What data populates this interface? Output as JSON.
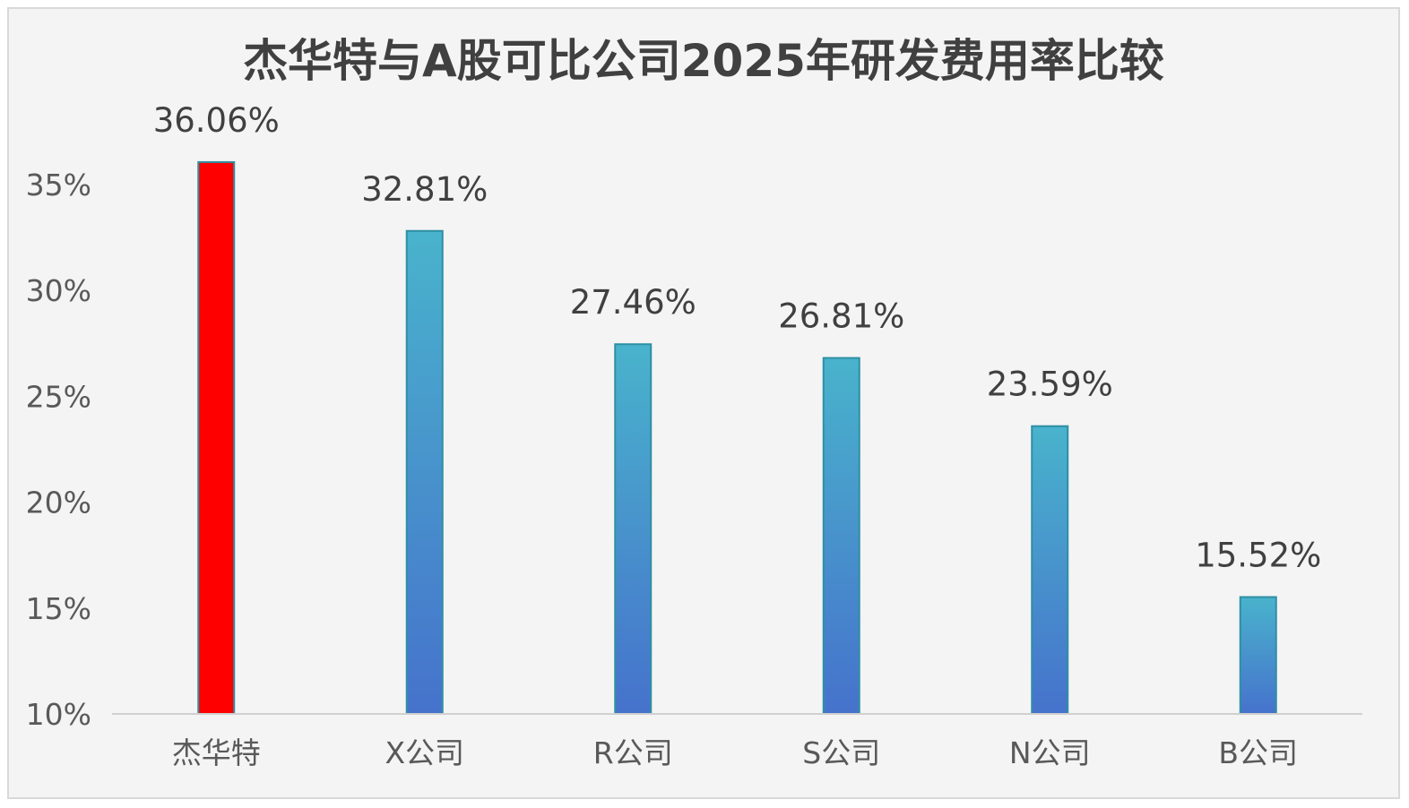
{
  "colors": {
    "highlight": "#ff0000",
    "bar_top": "#49b3cc",
    "bar_bottom": "#4672cc",
    "bar_stroke": "#2f8fa3",
    "axis": "#d0d0d0"
  },
  "chart_data": {
    "type": "bar",
    "title": "杰华特与A股可比公司2025年研发费用率比较",
    "xlabel": "",
    "ylabel": "",
    "categories": [
      "杰华特",
      "X公司",
      "R公司",
      "S公司",
      "N公司",
      "B公司"
    ],
    "values": [
      36.06,
      32.81,
      27.46,
      26.81,
      23.59,
      15.52
    ],
    "data_labels": [
      "36.06%",
      "32.81%",
      "27.46%",
      "26.81%",
      "23.59%",
      "15.52%"
    ],
    "highlight_index": 0,
    "ylim": [
      10,
      35
    ],
    "yticks": [
      10,
      15,
      20,
      25,
      30,
      35
    ],
    "ytick_labels": [
      "10%",
      "15%",
      "20%",
      "25%",
      "30%",
      "35%"
    ],
    "grid": false,
    "legend": "none"
  }
}
